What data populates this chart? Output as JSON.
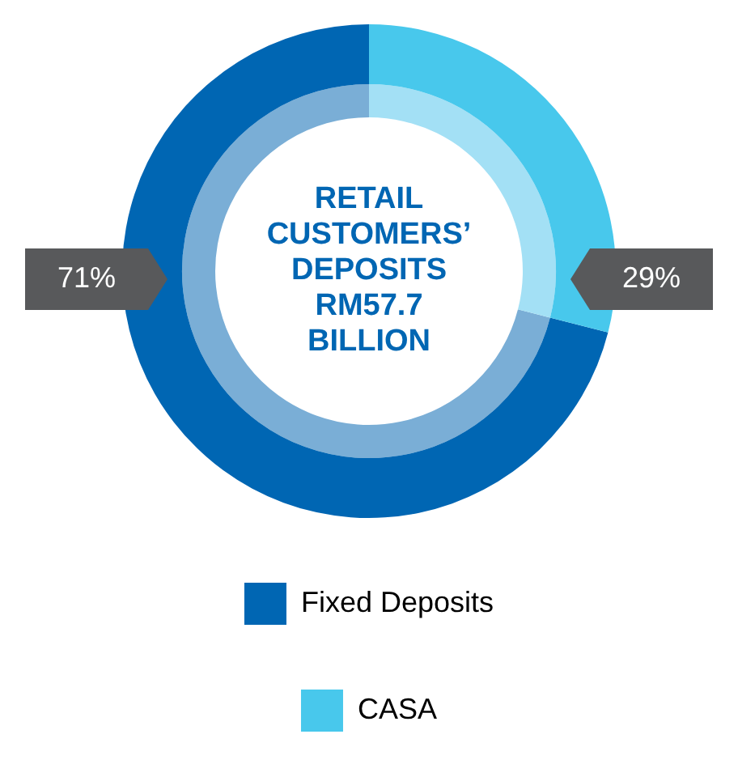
{
  "chart_data": {
    "type": "donut",
    "title": "RETAIL CUSTOMERS’ DEPOSITS RM57.7 BILLION",
    "categories": [
      "Fixed Deposits",
      "CASA"
    ],
    "series": [
      {
        "colors": [
          "#0066b3",
          "#48c8ec"
        ],
        "values": [
          71,
          29
        ]
      },
      {
        "colors": [
          "#7aaed6",
          "#a3e0f5"
        ],
        "values": [
          71,
          29
        ]
      }
    ],
    "value_labels": [
      "71%",
      "29%"
    ],
    "legend": "bottom"
  }
}
